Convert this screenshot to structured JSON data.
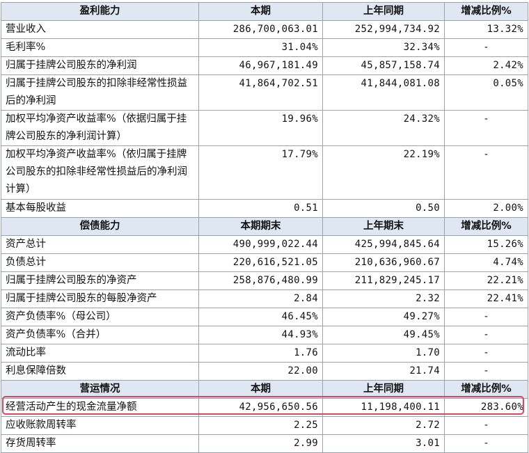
{
  "highlight_color": "#e0455f",
  "sections": [
    {
      "header": [
        "盈利能力",
        "本期",
        "上年同期",
        "增减比例%"
      ],
      "rows": [
        [
          "营业收入",
          "286,700,063.01",
          "252,994,734.92",
          "13.32%"
        ],
        [
          "毛利率%",
          "31.04%",
          "32.34%",
          "-"
        ],
        [
          "归属于挂牌公司股东的净利润",
          "46,967,181.49",
          "45,857,158.74",
          "2.42%"
        ],
        [
          "归属于挂牌公司股东的扣除非经常性损益后的净利润",
          "41,864,702.51",
          "41,844,081.08",
          "0.05%"
        ],
        [
          "加权平均净资产收益率%（依据归属于挂牌公司股东的净利润计算）",
          "19.96%",
          "24.32%",
          "-"
        ],
        [
          "加权平均净资产收益率%（依归属于挂牌公司股东的扣除非经常性损益后的净利润计算）",
          "17.79%",
          "22.19%",
          "-"
        ],
        [
          "基本每股收益",
          "0.51",
          "0.50",
          "2.00%"
        ]
      ]
    },
    {
      "header": [
        "偿债能力",
        "本期期末",
        "上年期末",
        "增减比例%"
      ],
      "rows": [
        [
          "资产总计",
          "490,999,022.44",
          "425,994,845.64",
          "15.26%"
        ],
        [
          "负债总计",
          "220,616,521.05",
          "210,636,960.67",
          "4.74%"
        ],
        [
          "归属于挂牌公司股东的净资产",
          "258,876,480.99",
          "211,829,245.17",
          "22.21%"
        ],
        [
          "归属于挂牌公司股东的每股净资产",
          "2.84",
          "2.32",
          "22.41%"
        ],
        [
          "资产负债率%（母公司）",
          "46.45%",
          "49.27%",
          "-"
        ],
        [
          "资产负债率%（合并）",
          "44.93%",
          "49.45%",
          "-"
        ],
        [
          "流动比率",
          "1.76",
          "1.70",
          "-"
        ],
        [
          "利息保障倍数",
          "22.00",
          "21.74",
          "-"
        ]
      ]
    },
    {
      "header": [
        "营运情况",
        "本期",
        "上年同期",
        "增减比例%"
      ],
      "rows": [
        [
          "经营活动产生的现金流量净额",
          "42,956,650.56",
          "11,198,400.11",
          "283.60%"
        ],
        [
          "应收账款周转率",
          "2.25",
          "2.72",
          "-"
        ],
        [
          "存货周转率",
          "2.99",
          "3.01",
          "-"
        ]
      ]
    }
  ]
}
